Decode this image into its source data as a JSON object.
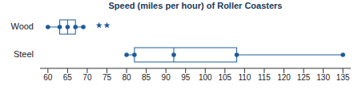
{
  "chart_data": {
    "type": "box",
    "title": "Speed (miles per hour) of Roller Coasters",
    "categories": [
      "Wood",
      "Steel"
    ],
    "stats": [
      {
        "min": 60,
        "q1": 63,
        "median": 65,
        "q3": 67,
        "max": 69,
        "outliers": [
          73,
          75
        ]
      },
      {
        "min": 80,
        "q1": 82,
        "median": 92,
        "q3": 108,
        "max": 135,
        "outliers": []
      }
    ],
    "color": "#1e5c99",
    "marker": "circle",
    "xlim": [
      58,
      137
    ],
    "xticks": [
      60,
      65,
      70,
      75,
      80,
      85,
      90,
      95,
      100,
      105,
      110,
      115,
      120,
      125,
      130,
      135
    ]
  }
}
